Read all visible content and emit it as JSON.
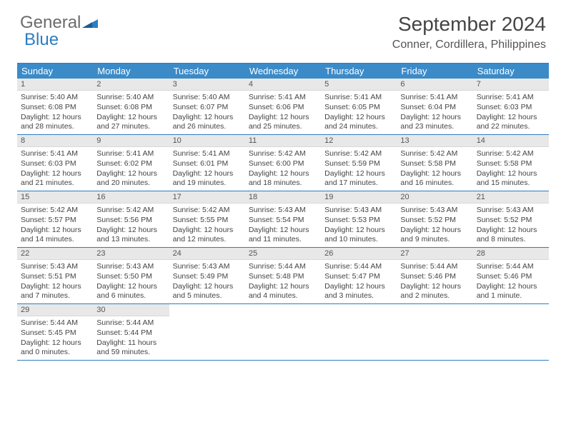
{
  "logo": {
    "text1": "General",
    "text2": "Blue"
  },
  "header": {
    "month_title": "September 2024",
    "location": "Conner, Cordillera, Philippines"
  },
  "colors": {
    "header_bg": "#3b8bc9",
    "border": "#2d7dc0",
    "daynum_bg": "#e8e8e8",
    "text": "#444444"
  },
  "day_names": [
    "Sunday",
    "Monday",
    "Tuesday",
    "Wednesday",
    "Thursday",
    "Friday",
    "Saturday"
  ],
  "weeks": [
    [
      {
        "n": "1",
        "sunrise": "Sunrise: 5:40 AM",
        "sunset": "Sunset: 6:08 PM",
        "day1": "Daylight: 12 hours",
        "day2": "and 28 minutes."
      },
      {
        "n": "2",
        "sunrise": "Sunrise: 5:40 AM",
        "sunset": "Sunset: 6:08 PM",
        "day1": "Daylight: 12 hours",
        "day2": "and 27 minutes."
      },
      {
        "n": "3",
        "sunrise": "Sunrise: 5:40 AM",
        "sunset": "Sunset: 6:07 PM",
        "day1": "Daylight: 12 hours",
        "day2": "and 26 minutes."
      },
      {
        "n": "4",
        "sunrise": "Sunrise: 5:41 AM",
        "sunset": "Sunset: 6:06 PM",
        "day1": "Daylight: 12 hours",
        "day2": "and 25 minutes."
      },
      {
        "n": "5",
        "sunrise": "Sunrise: 5:41 AM",
        "sunset": "Sunset: 6:05 PM",
        "day1": "Daylight: 12 hours",
        "day2": "and 24 minutes."
      },
      {
        "n": "6",
        "sunrise": "Sunrise: 5:41 AM",
        "sunset": "Sunset: 6:04 PM",
        "day1": "Daylight: 12 hours",
        "day2": "and 23 minutes."
      },
      {
        "n": "7",
        "sunrise": "Sunrise: 5:41 AM",
        "sunset": "Sunset: 6:03 PM",
        "day1": "Daylight: 12 hours",
        "day2": "and 22 minutes."
      }
    ],
    [
      {
        "n": "8",
        "sunrise": "Sunrise: 5:41 AM",
        "sunset": "Sunset: 6:03 PM",
        "day1": "Daylight: 12 hours",
        "day2": "and 21 minutes."
      },
      {
        "n": "9",
        "sunrise": "Sunrise: 5:41 AM",
        "sunset": "Sunset: 6:02 PM",
        "day1": "Daylight: 12 hours",
        "day2": "and 20 minutes."
      },
      {
        "n": "10",
        "sunrise": "Sunrise: 5:41 AM",
        "sunset": "Sunset: 6:01 PM",
        "day1": "Daylight: 12 hours",
        "day2": "and 19 minutes."
      },
      {
        "n": "11",
        "sunrise": "Sunrise: 5:42 AM",
        "sunset": "Sunset: 6:00 PM",
        "day1": "Daylight: 12 hours",
        "day2": "and 18 minutes."
      },
      {
        "n": "12",
        "sunrise": "Sunrise: 5:42 AM",
        "sunset": "Sunset: 5:59 PM",
        "day1": "Daylight: 12 hours",
        "day2": "and 17 minutes."
      },
      {
        "n": "13",
        "sunrise": "Sunrise: 5:42 AM",
        "sunset": "Sunset: 5:58 PM",
        "day1": "Daylight: 12 hours",
        "day2": "and 16 minutes."
      },
      {
        "n": "14",
        "sunrise": "Sunrise: 5:42 AM",
        "sunset": "Sunset: 5:58 PM",
        "day1": "Daylight: 12 hours",
        "day2": "and 15 minutes."
      }
    ],
    [
      {
        "n": "15",
        "sunrise": "Sunrise: 5:42 AM",
        "sunset": "Sunset: 5:57 PM",
        "day1": "Daylight: 12 hours",
        "day2": "and 14 minutes."
      },
      {
        "n": "16",
        "sunrise": "Sunrise: 5:42 AM",
        "sunset": "Sunset: 5:56 PM",
        "day1": "Daylight: 12 hours",
        "day2": "and 13 minutes."
      },
      {
        "n": "17",
        "sunrise": "Sunrise: 5:42 AM",
        "sunset": "Sunset: 5:55 PM",
        "day1": "Daylight: 12 hours",
        "day2": "and 12 minutes."
      },
      {
        "n": "18",
        "sunrise": "Sunrise: 5:43 AM",
        "sunset": "Sunset: 5:54 PM",
        "day1": "Daylight: 12 hours",
        "day2": "and 11 minutes."
      },
      {
        "n": "19",
        "sunrise": "Sunrise: 5:43 AM",
        "sunset": "Sunset: 5:53 PM",
        "day1": "Daylight: 12 hours",
        "day2": "and 10 minutes."
      },
      {
        "n": "20",
        "sunrise": "Sunrise: 5:43 AM",
        "sunset": "Sunset: 5:52 PM",
        "day1": "Daylight: 12 hours",
        "day2": "and 9 minutes."
      },
      {
        "n": "21",
        "sunrise": "Sunrise: 5:43 AM",
        "sunset": "Sunset: 5:52 PM",
        "day1": "Daylight: 12 hours",
        "day2": "and 8 minutes."
      }
    ],
    [
      {
        "n": "22",
        "sunrise": "Sunrise: 5:43 AM",
        "sunset": "Sunset: 5:51 PM",
        "day1": "Daylight: 12 hours",
        "day2": "and 7 minutes."
      },
      {
        "n": "23",
        "sunrise": "Sunrise: 5:43 AM",
        "sunset": "Sunset: 5:50 PM",
        "day1": "Daylight: 12 hours",
        "day2": "and 6 minutes."
      },
      {
        "n": "24",
        "sunrise": "Sunrise: 5:43 AM",
        "sunset": "Sunset: 5:49 PM",
        "day1": "Daylight: 12 hours",
        "day2": "and 5 minutes."
      },
      {
        "n": "25",
        "sunrise": "Sunrise: 5:44 AM",
        "sunset": "Sunset: 5:48 PM",
        "day1": "Daylight: 12 hours",
        "day2": "and 4 minutes."
      },
      {
        "n": "26",
        "sunrise": "Sunrise: 5:44 AM",
        "sunset": "Sunset: 5:47 PM",
        "day1": "Daylight: 12 hours",
        "day2": "and 3 minutes."
      },
      {
        "n": "27",
        "sunrise": "Sunrise: 5:44 AM",
        "sunset": "Sunset: 5:46 PM",
        "day1": "Daylight: 12 hours",
        "day2": "and 2 minutes."
      },
      {
        "n": "28",
        "sunrise": "Sunrise: 5:44 AM",
        "sunset": "Sunset: 5:46 PM",
        "day1": "Daylight: 12 hours",
        "day2": "and 1 minute."
      }
    ],
    [
      {
        "n": "29",
        "sunrise": "Sunrise: 5:44 AM",
        "sunset": "Sunset: 5:45 PM",
        "day1": "Daylight: 12 hours",
        "day2": "and 0 minutes."
      },
      {
        "n": "30",
        "sunrise": "Sunrise: 5:44 AM",
        "sunset": "Sunset: 5:44 PM",
        "day1": "Daylight: 11 hours",
        "day2": "and 59 minutes."
      },
      null,
      null,
      null,
      null,
      null
    ]
  ]
}
